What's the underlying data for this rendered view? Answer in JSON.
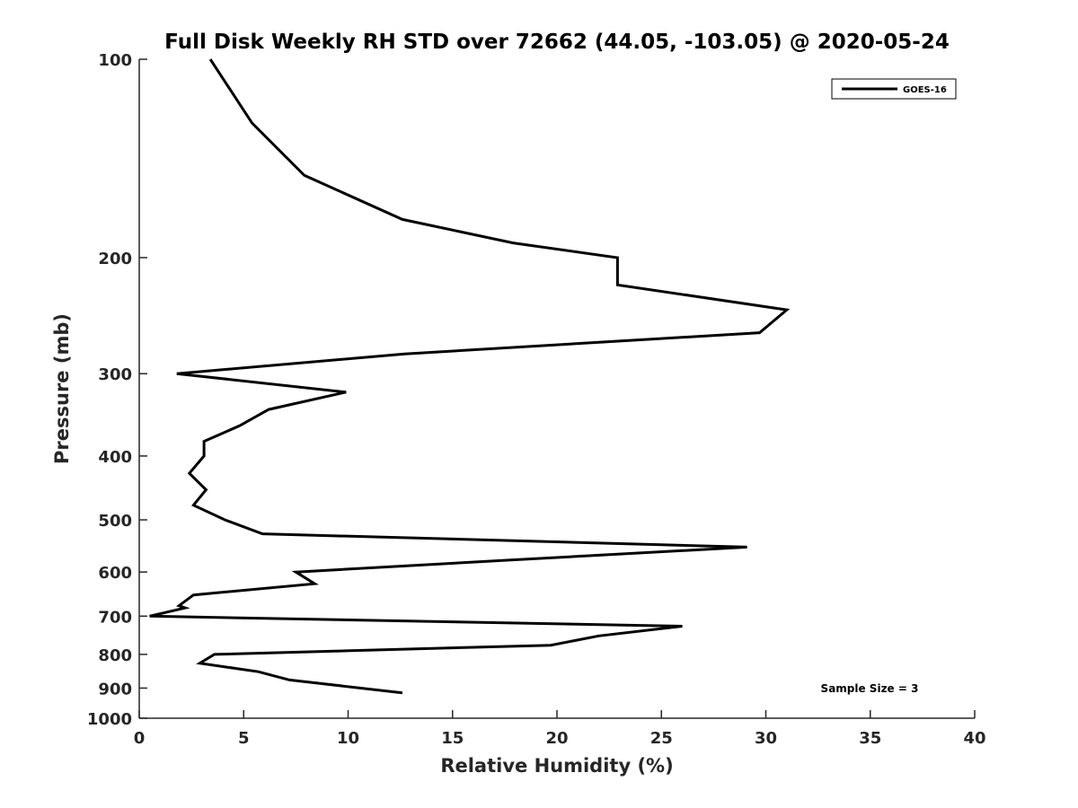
{
  "chart_data": {
    "type": "line",
    "title": "Full Disk Weekly RH STD over 72662 (44.05, -103.05) @ 2020-05-24",
    "xlabel": "Relative Humidity (%)",
    "ylabel": "Pressure (mb)",
    "xlim": [
      0,
      40
    ],
    "ylim": [
      100,
      1000
    ],
    "y_scale": "log",
    "y_reversed": true,
    "grid": false,
    "x_ticks": [
      "0",
      "5",
      "10",
      "15",
      "20",
      "25",
      "30",
      "35",
      "40"
    ],
    "y_ticks": [
      "100",
      "200",
      "300",
      "400",
      "500",
      "600",
      "700",
      "800",
      "900",
      "1000"
    ],
    "legend_position": "top-right",
    "series": [
      {
        "name": "GOES-16",
        "color": "#000000",
        "points": [
          {
            "x": 3.4,
            "y": 100
          },
          {
            "x": 5.4,
            "y": 125
          },
          {
            "x": 7.9,
            "y": 150
          },
          {
            "x": 12.6,
            "y": 175
          },
          {
            "x": 17.9,
            "y": 190
          },
          {
            "x": 22.9,
            "y": 200
          },
          {
            "x": 22.9,
            "y": 220
          },
          {
            "x": 31.0,
            "y": 240
          },
          {
            "x": 29.7,
            "y": 260
          },
          {
            "x": 12.7,
            "y": 280
          },
          {
            "x": 1.8,
            "y": 300
          },
          {
            "x": 9.9,
            "y": 320
          },
          {
            "x": 6.2,
            "y": 340
          },
          {
            "x": 4.8,
            "y": 360
          },
          {
            "x": 3.1,
            "y": 380
          },
          {
            "x": 3.1,
            "y": 400
          },
          {
            "x": 2.4,
            "y": 425
          },
          {
            "x": 3.2,
            "y": 450
          },
          {
            "x": 2.6,
            "y": 475
          },
          {
            "x": 4.1,
            "y": 500
          },
          {
            "x": 5.9,
            "y": 525
          },
          {
            "x": 29.1,
            "y": 550
          },
          {
            "x": 17.9,
            "y": 575
          },
          {
            "x": 7.5,
            "y": 600
          },
          {
            "x": 8.4,
            "y": 625
          },
          {
            "x": 2.6,
            "y": 650
          },
          {
            "x": 1.9,
            "y": 675
          },
          {
            "x": 2.2,
            "y": 680
          },
          {
            "x": 0.5,
            "y": 700
          },
          {
            "x": 26.0,
            "y": 725
          },
          {
            "x": 22.0,
            "y": 750
          },
          {
            "x": 19.7,
            "y": 775
          },
          {
            "x": 3.6,
            "y": 800
          },
          {
            "x": 2.9,
            "y": 825
          },
          {
            "x": 5.7,
            "y": 850
          },
          {
            "x": 7.2,
            "y": 875
          },
          {
            "x": 12.6,
            "y": 915
          }
        ]
      }
    ],
    "annotations": [
      {
        "text": "Sample Size = 3"
      }
    ]
  }
}
